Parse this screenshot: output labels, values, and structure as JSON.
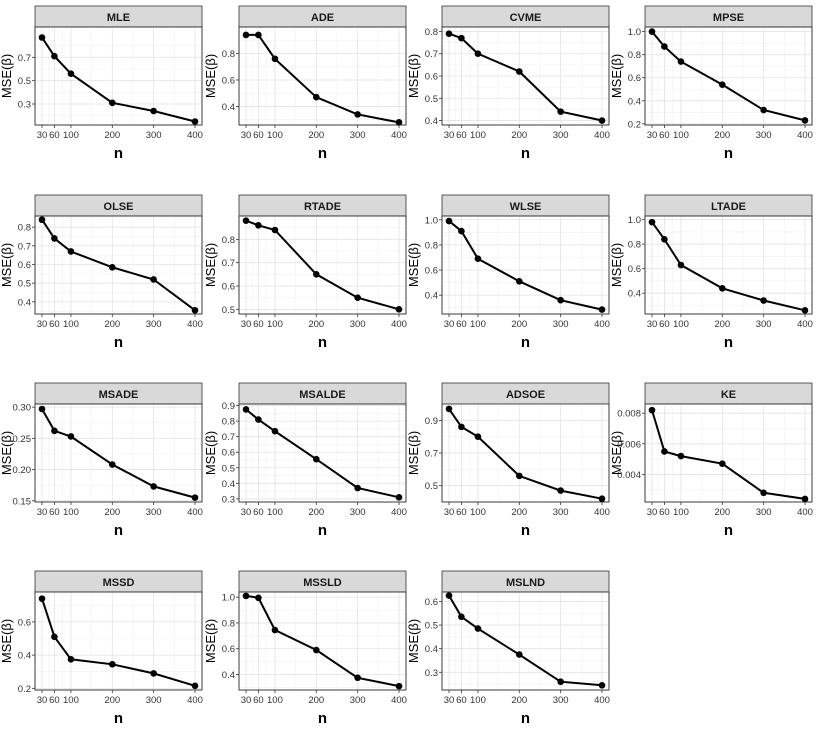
{
  "figure": {
    "xlabel": "n",
    "ylabel": "MSE(β)"
  },
  "chart_data": [
    {
      "type": "line",
      "title": "MLE",
      "x": [
        30,
        60,
        100,
        200,
        300,
        400
      ],
      "values": [
        0.87,
        0.71,
        0.56,
        0.31,
        0.24,
        0.15
      ],
      "yticks": [
        "0.3",
        "0.5",
        "0.7"
      ],
      "ytick_values": [
        0.3,
        0.5,
        0.7
      ],
      "ylim": [
        0.12,
        0.96
      ],
      "xticks": [
        "30",
        "60",
        "100",
        "200",
        "300",
        "400"
      ]
    },
    {
      "type": "line",
      "title": "ADE",
      "x": [
        30,
        60,
        100,
        200,
        300,
        400
      ],
      "values": [
        0.94,
        0.94,
        0.76,
        0.47,
        0.34,
        0.28
      ],
      "yticks": [
        "0.4",
        "0.6",
        "0.8"
      ],
      "ytick_values": [
        0.4,
        0.6,
        0.8
      ],
      "ylim": [
        0.26,
        1.0
      ],
      "xticks": [
        "30",
        "60",
        "100",
        "200",
        "300",
        "400"
      ]
    },
    {
      "type": "line",
      "title": "CVME",
      "x": [
        30,
        60,
        100,
        200,
        300,
        400
      ],
      "values": [
        0.79,
        0.77,
        0.7,
        0.62,
        0.44,
        0.4
      ],
      "yticks": [
        "0.4",
        "0.5",
        "0.6",
        "0.7",
        "0.8"
      ],
      "ytick_values": [
        0.4,
        0.5,
        0.6,
        0.7,
        0.8
      ],
      "ylim": [
        0.38,
        0.82
      ],
      "xticks": [
        "30",
        "60",
        "100",
        "200",
        "300",
        "400"
      ]
    },
    {
      "type": "line",
      "title": "MPSE",
      "x": [
        30,
        60,
        100,
        200,
        300,
        400
      ],
      "values": [
        1.0,
        0.87,
        0.74,
        0.54,
        0.32,
        0.23
      ],
      "yticks": [
        "0.2",
        "0.4",
        "0.6",
        "0.8",
        "1.0"
      ],
      "ytick_values": [
        0.2,
        0.4,
        0.6,
        0.8,
        1.0
      ],
      "ylim": [
        0.19,
        1.04
      ],
      "xticks": [
        "30",
        "60",
        "100",
        "200",
        "300",
        "400"
      ]
    },
    {
      "type": "line",
      "title": "OLSE",
      "x": [
        30,
        60,
        100,
        200,
        300,
        400
      ],
      "values": [
        0.84,
        0.74,
        0.67,
        0.585,
        0.52,
        0.355
      ],
      "yticks": [
        "0.4",
        "0.5",
        "0.6",
        "0.7",
        "0.8"
      ],
      "ytick_values": [
        0.4,
        0.5,
        0.6,
        0.7,
        0.8
      ],
      "ylim": [
        0.335,
        0.86
      ],
      "xticks": [
        "30",
        "60",
        "100",
        "200",
        "300",
        "400"
      ]
    },
    {
      "type": "line",
      "title": "RTADE",
      "x": [
        30,
        60,
        100,
        200,
        300,
        400
      ],
      "values": [
        0.88,
        0.86,
        0.84,
        0.65,
        0.55,
        0.5
      ],
      "yticks": [
        "0.5",
        "0.6",
        "0.7",
        "0.8"
      ],
      "ytick_values": [
        0.5,
        0.6,
        0.7,
        0.8
      ],
      "ylim": [
        0.48,
        0.9
      ],
      "xticks": [
        "30",
        "60",
        "100",
        "200",
        "300",
        "400"
      ]
    },
    {
      "type": "line",
      "title": "WLSE",
      "x": [
        30,
        60,
        100,
        200,
        300,
        400
      ],
      "values": [
        0.99,
        0.91,
        0.69,
        0.51,
        0.36,
        0.285
      ],
      "yticks": [
        "0.4",
        "0.6",
        "0.8",
        "1.0"
      ],
      "ytick_values": [
        0.4,
        0.6,
        0.8,
        1.0
      ],
      "ylim": [
        0.25,
        1.03
      ],
      "xticks": [
        "30",
        "60",
        "100",
        "200",
        "300",
        "400"
      ]
    },
    {
      "type": "line",
      "title": "LTADE",
      "x": [
        30,
        60,
        100,
        200,
        300,
        400
      ],
      "values": [
        0.98,
        0.84,
        0.63,
        0.44,
        0.34,
        0.26
      ],
      "yticks": [
        "0.4",
        "0.6",
        "0.8",
        "1.0"
      ],
      "ytick_values": [
        0.4,
        0.6,
        0.8,
        1.0
      ],
      "ylim": [
        0.23,
        1.03
      ],
      "xticks": [
        "30",
        "60",
        "100",
        "200",
        "300",
        "400"
      ]
    },
    {
      "type": "line",
      "title": "MSADE",
      "x": [
        30,
        60,
        100,
        200,
        300,
        400
      ],
      "values": [
        0.297,
        0.262,
        0.253,
        0.208,
        0.173,
        0.155
      ],
      "yticks": [
        "0.15",
        "0.20",
        "0.25",
        "0.30"
      ],
      "ytick_values": [
        0.15,
        0.2,
        0.25,
        0.3
      ],
      "ylim": [
        0.148,
        0.305
      ],
      "xticks": [
        "30",
        "60",
        "100",
        "200",
        "300",
        "400"
      ]
    },
    {
      "type": "line",
      "title": "MSALDE",
      "x": [
        30,
        60,
        100,
        200,
        300,
        400
      ],
      "values": [
        0.875,
        0.81,
        0.735,
        0.555,
        0.37,
        0.31
      ],
      "yticks": [
        "0.3",
        "0.4",
        "0.5",
        "0.6",
        "0.7",
        "0.8",
        "0.9"
      ],
      "ytick_values": [
        0.3,
        0.4,
        0.5,
        0.6,
        0.7,
        0.8,
        0.9
      ],
      "ylim": [
        0.28,
        0.91
      ],
      "xticks": [
        "30",
        "60",
        "100",
        "200",
        "300",
        "400"
      ]
    },
    {
      "type": "line",
      "title": "ADSOE",
      "x": [
        30,
        60,
        100,
        200,
        300,
        400
      ],
      "values": [
        0.97,
        0.86,
        0.8,
        0.56,
        0.47,
        0.42
      ],
      "yticks": [
        "0.5",
        "0.7",
        "0.9"
      ],
      "ytick_values": [
        0.5,
        0.7,
        0.9
      ],
      "ylim": [
        0.4,
        1.0
      ],
      "xticks": [
        "30",
        "60",
        "100",
        "200",
        "300",
        "400"
      ]
    },
    {
      "type": "line",
      "title": "KE",
      "x": [
        30,
        60,
        100,
        200,
        300,
        400
      ],
      "values": [
        0.0082,
        0.0055,
        0.0052,
        0.0047,
        0.0028,
        0.0024
      ],
      "yticks": [
        "0.004",
        "0.006",
        "0.008"
      ],
      "ytick_values": [
        0.004,
        0.006,
        0.008
      ],
      "ylim": [
        0.0022,
        0.0086
      ],
      "xticks": [
        "30",
        "60",
        "100",
        "200",
        "300",
        "400"
      ]
    },
    {
      "type": "line",
      "title": "MSSD",
      "x": [
        30,
        60,
        100,
        200,
        300,
        400
      ],
      "values": [
        0.74,
        0.51,
        0.375,
        0.345,
        0.29,
        0.215
      ],
      "yticks": [
        "0.2",
        "0.4",
        "0.6"
      ],
      "ytick_values": [
        0.2,
        0.4,
        0.6
      ],
      "ylim": [
        0.19,
        0.78
      ],
      "xticks": [
        "30",
        "60",
        "100",
        "200",
        "300",
        "400"
      ]
    },
    {
      "type": "line",
      "title": "MSSLD",
      "x": [
        30,
        60,
        100,
        200,
        300,
        400
      ],
      "values": [
        1.01,
        0.995,
        0.745,
        0.59,
        0.375,
        0.31
      ],
      "yticks": [
        "0.4",
        "0.6",
        "0.8",
        "1.0"
      ],
      "ytick_values": [
        0.4,
        0.6,
        0.8,
        1.0
      ],
      "ylim": [
        0.28,
        1.04
      ],
      "xticks": [
        "30",
        "60",
        "100",
        "200",
        "300",
        "400"
      ]
    },
    {
      "type": "line",
      "title": "MSLND",
      "x": [
        30,
        60,
        100,
        200,
        300,
        400
      ],
      "values": [
        0.625,
        0.535,
        0.485,
        0.375,
        0.26,
        0.245
      ],
      "yticks": [
        "0.3",
        "0.4",
        "0.5",
        "0.6"
      ],
      "ytick_values": [
        0.3,
        0.4,
        0.5,
        0.6
      ],
      "ylim": [
        0.225,
        0.64
      ],
      "xticks": [
        "30",
        "60",
        "100",
        "200",
        "300",
        "400"
      ]
    }
  ]
}
